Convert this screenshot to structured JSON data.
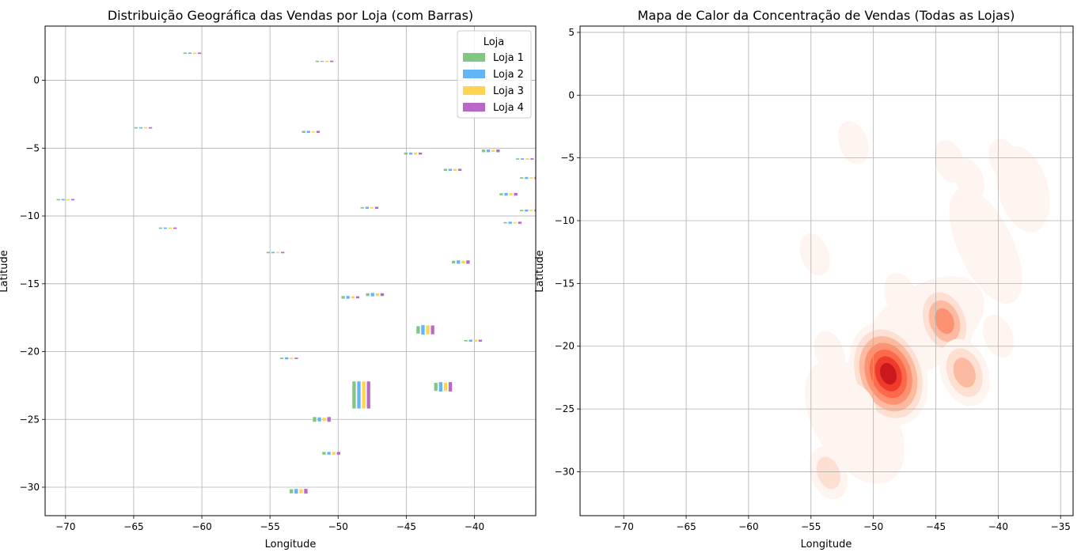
{
  "chart_data": [
    {
      "type": "bar",
      "title": "Distribuição Geográfica das Vendas por Loja (com Barras)",
      "xlabel": "Longitude",
      "ylabel": "Latitude",
      "xlim": [
        -71.5,
        -35.5
      ],
      "ylim": [
        -32.1,
        4.0
      ],
      "xticks": [
        -70,
        -65,
        -60,
        -55,
        -50,
        -45,
        -40
      ],
      "yticks": [
        0,
        -5,
        -10,
        -15,
        -20,
        -25,
        -30
      ],
      "grid": true,
      "legend": {
        "title": "Loja",
        "placement": "top-right",
        "entries": [
          "Loja 1",
          "Loja 2",
          "Loja 3",
          "Loja 4"
        ]
      },
      "series_colors": [
        "#81c784",
        "#64b5f6",
        "#ffd54f",
        "#ba68c8"
      ],
      "points": [
        {
          "lon": -60.7,
          "lat": 2.0,
          "v": [
            0.1,
            0.1,
            0.1,
            0.1
          ]
        },
        {
          "lon": -51.0,
          "lat": 1.4,
          "v": [
            0.1,
            0.05,
            0.1,
            0.1
          ]
        },
        {
          "lon": -64.3,
          "lat": -3.5,
          "v": [
            0.1,
            0.1,
            0.1,
            0.1
          ]
        },
        {
          "lon": -52.0,
          "lat": -3.8,
          "v": [
            0.15,
            0.15,
            0.1,
            0.15
          ]
        },
        {
          "lon": -44.5,
          "lat": -5.4,
          "v": [
            0.15,
            0.15,
            0.15,
            0.15
          ]
        },
        {
          "lon": -38.8,
          "lat": -5.2,
          "v": [
            0.2,
            0.2,
            0.15,
            0.2
          ]
        },
        {
          "lon": -36.3,
          "lat": -5.8,
          "v": [
            0.1,
            0.1,
            0.1,
            0.1
          ]
        },
        {
          "lon": -41.6,
          "lat": -6.6,
          "v": [
            0.15,
            0.15,
            0.15,
            0.15
          ]
        },
        {
          "lon": -36.0,
          "lat": -7.2,
          "v": [
            0.1,
            0.15,
            0.1,
            0.15
          ]
        },
        {
          "lon": -70.0,
          "lat": -8.8,
          "v": [
            0.1,
            0.1,
            0.1,
            0.1
          ]
        },
        {
          "lon": -37.5,
          "lat": -8.4,
          "v": [
            0.15,
            0.2,
            0.15,
            0.2
          ]
        },
        {
          "lon": -47.7,
          "lat": -9.4,
          "v": [
            0.1,
            0.15,
            0.1,
            0.15
          ]
        },
        {
          "lon": -36.0,
          "lat": -9.6,
          "v": [
            0.1,
            0.15,
            0.1,
            0.15
          ]
        },
        {
          "lon": -37.2,
          "lat": -10.5,
          "v": [
            0.1,
            0.15,
            0.1,
            0.15
          ]
        },
        {
          "lon": -62.5,
          "lat": -10.9,
          "v": [
            0.1,
            0.1,
            0.1,
            0.1
          ]
        },
        {
          "lon": -54.6,
          "lat": -12.7,
          "v": [
            0.1,
            0.1,
            0.1,
            0.1
          ]
        },
        {
          "lon": -41.0,
          "lat": -13.4,
          "v": [
            0.2,
            0.25,
            0.2,
            0.25
          ]
        },
        {
          "lon": -49.1,
          "lat": -16.0,
          "v": [
            0.2,
            0.2,
            0.15,
            0.15
          ]
        },
        {
          "lon": -47.3,
          "lat": -15.8,
          "v": [
            0.2,
            0.25,
            0.2,
            0.2
          ]
        },
        {
          "lon": -43.6,
          "lat": -18.4,
          "v": [
            0.55,
            0.7,
            0.65,
            0.65
          ]
        },
        {
          "lon": -40.1,
          "lat": -19.2,
          "v": [
            0.1,
            0.15,
            0.15,
            0.15
          ]
        },
        {
          "lon": -53.6,
          "lat": -20.5,
          "v": [
            0.1,
            0.15,
            0.1,
            0.1
          ]
        },
        {
          "lon": -48.3,
          "lat": -23.2,
          "v": [
            2.0,
            2.0,
            2.0,
            2.0
          ]
        },
        {
          "lon": -42.3,
          "lat": -22.6,
          "v": [
            0.6,
            0.7,
            0.6,
            0.7
          ]
        },
        {
          "lon": -51.2,
          "lat": -25.0,
          "v": [
            0.35,
            0.3,
            0.25,
            0.35
          ]
        },
        {
          "lon": -50.5,
          "lat": -27.5,
          "v": [
            0.2,
            0.2,
            0.2,
            0.2
          ]
        },
        {
          "lon": -52.9,
          "lat": -30.3,
          "v": [
            0.3,
            0.35,
            0.3,
            0.35
          ]
        }
      ]
    },
    {
      "type": "heatmap",
      "title": "Mapa de Calor da Concentração de Vendas (Todas as Lojas)",
      "xlabel": "Longitude",
      "ylabel": "Latitude",
      "xlim": [
        -73.5,
        -34.0
      ],
      "ylim": [
        -33.5,
        5.5
      ],
      "xticks": [
        -70,
        -65,
        -60,
        -55,
        -50,
        -45,
        -40,
        -35
      ],
      "yticks": [
        5,
        0,
        -5,
        -10,
        -15,
        -20,
        -25,
        -30
      ],
      "grid": true,
      "colormap": [
        "#fff5f0",
        "#fee0d2",
        "#fcbba1",
        "#fc9272",
        "#fb6a4a",
        "#ef3b2c",
        "#cb181d",
        "#a50f15"
      ],
      "hotspots": [
        {
          "lon": -48.8,
          "lat": -22.2,
          "w": 1.0
        },
        {
          "lon": -44.3,
          "lat": -18.0,
          "w": 0.55
        },
        {
          "lon": -42.7,
          "lat": -22.1,
          "w": 0.45
        },
        {
          "lon": -53.6,
          "lat": -30.1,
          "w": 0.22
        },
        {
          "lon": -51.2,
          "lat": -25.0,
          "w": 0.18
        },
        {
          "lon": -47.8,
          "lat": -16.0,
          "w": 0.12
        },
        {
          "lon": -41.4,
          "lat": -13.3,
          "w": 0.12
        },
        {
          "lon": -38.2,
          "lat": -8.2,
          "w": 0.14
        },
        {
          "lon": -39.5,
          "lat": -5.2,
          "w": 0.08
        },
        {
          "lon": -43.9,
          "lat": -5.3,
          "w": 0.07
        },
        {
          "lon": -54.7,
          "lat": -12.7,
          "w": 0.06
        },
        {
          "lon": -53.5,
          "lat": -20.5,
          "w": 0.07
        },
        {
          "lon": -51.6,
          "lat": -3.8,
          "w": 0.07
        },
        {
          "lon": -42.3,
          "lat": -6.7,
          "w": 0.05
        },
        {
          "lon": -40.0,
          "lat": -19.2,
          "w": 0.07
        },
        {
          "lon": -50.4,
          "lat": -27.4,
          "w": 0.1
        }
      ]
    }
  ]
}
